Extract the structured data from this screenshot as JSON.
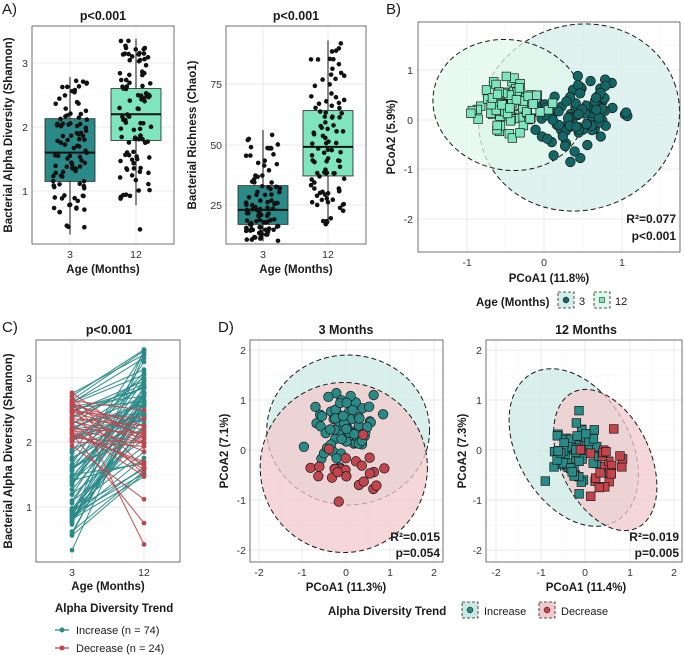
{
  "colors": {
    "teal": "#2a8a88",
    "teal_dark": "#136666",
    "mint": "#7fe5c0",
    "mint_light": "#c7f5e4",
    "red": "#c2454d",
    "red_light": "#f3c9cc",
    "point": "#111111"
  },
  "panel_labels": [
    "A)",
    "B)",
    "C)",
    "D)"
  ],
  "chart_data": [
    {
      "id": "A1",
      "type": "boxplot",
      "title": "p<0.001",
      "xlabel": "Age (Months)",
      "ylabel": "Bacterial Alpha Diversity (Shannon)",
      "categories": [
        "3",
        "12"
      ],
      "ylim": [
        0.2,
        3.5
      ],
      "yticks": [
        1,
        2,
        3
      ],
      "boxes": [
        {
          "group": "3",
          "q1": 1.15,
          "median": 1.6,
          "q3": 2.13,
          "whisker_low": 0.32,
          "whisker_high": 2.78,
          "n": 98,
          "color": "#2a8a88"
        },
        {
          "group": "12",
          "q1": 1.79,
          "median": 2.2,
          "q3": 2.6,
          "whisker_low": 0.78,
          "whisker_high": 3.38,
          "outliers": [
            0.4
          ],
          "n": 98,
          "color": "#7fe5c0"
        }
      ]
    },
    {
      "id": "A2",
      "type": "boxplot",
      "title": "p<0.001",
      "xlabel": "Age (Months)",
      "ylabel": "Bacterial Richness (Chao1)",
      "categories": [
        "3",
        "12"
      ],
      "ylim": [
        8,
        97
      ],
      "yticks": [
        25,
        50,
        75
      ],
      "boxes": [
        {
          "group": "3",
          "q1": 17,
          "median": 23,
          "q3": 33,
          "whisker_low": 10,
          "whisker_high": 56,
          "n": 98,
          "color": "#2a8a88"
        },
        {
          "group": "12",
          "q1": 37,
          "median": 49,
          "q3": 64,
          "whisker_low": 17,
          "whisker_high": 93,
          "n": 98,
          "color": "#7fe5c0"
        }
      ]
    },
    {
      "id": "B",
      "type": "scatter",
      "xlabel": "PCoA1 (11.8%)",
      "ylabel": "PCoA2 (5.9%)",
      "xlim": [
        -1.5,
        1.95
      ],
      "ylim": [
        -2.55,
        2.05
      ],
      "xticks": [
        -1,
        0,
        1
      ],
      "yticks": [
        -2,
        -1,
        0,
        1
      ],
      "r2_label": "R²=0.077",
      "p_label": "p<0.001",
      "legend_title": "Age (Months)",
      "legend_entries": [
        "3",
        "12"
      ],
      "groups": [
        {
          "name": "3",
          "marker": "circle",
          "color": "#136666",
          "ellipse_fill": "#d6eeeb",
          "ellipse": {
            "cx": 0.45,
            "cy": 0.05,
            "rx": 1.3,
            "ry": 1.85,
            "angle_deg": -20
          }
        },
        {
          "name": "12",
          "marker": "square",
          "color": "#7fe5c0",
          "ellipse_fill": "#e0f8ee",
          "ellipse": {
            "cx": -0.45,
            "cy": 0.3,
            "rx": 0.98,
            "ry": 1.3,
            "angle_deg": 12
          }
        }
      ]
    },
    {
      "id": "C",
      "type": "paired-line",
      "title": "p<0.001",
      "xlabel": "Age (Months)",
      "ylabel": "Bacterial Alpha Diversity (Shannon)",
      "categories": [
        "3",
        "12"
      ],
      "ylim": [
        0.2,
        3.5
      ],
      "yticks": [
        1,
        2,
        3
      ],
      "legend_title": "Alpha Diversity Trend",
      "legend_entries": [
        {
          "label": "Increase (n = 74)",
          "color": "#2a8a88"
        },
        {
          "label": "Decrease (n = 24)",
          "color": "#c2454d"
        }
      ],
      "pairs": [
        [
          0.95,
          1.59,
          "i"
        ],
        [
          0.76,
          2.62,
          "i"
        ],
        [
          0.57,
          2.76,
          "i"
        ],
        [
          1.09,
          1.94,
          "i"
        ],
        [
          0.88,
          1.52,
          "i"
        ],
        [
          0.6,
          2.64,
          "i"
        ],
        [
          1.06,
          2.75,
          "i"
        ],
        [
          0.77,
          2.27,
          "i"
        ],
        [
          0.83,
          3.43,
          "i"
        ],
        [
          0.73,
          3.36,
          "i"
        ],
        [
          0.92,
          2.56,
          "i"
        ],
        [
          0.96,
          2.61,
          "i"
        ],
        [
          0.82,
          2.41,
          "i"
        ],
        [
          0.83,
          2.18,
          "i"
        ],
        [
          0.62,
          1.56,
          "i"
        ],
        [
          0.79,
          2.49,
          "i"
        ],
        [
          0.88,
          2.23,
          "i"
        ],
        [
          0.56,
          1.52,
          "i"
        ],
        [
          0.33,
          2.76,
          "i"
        ],
        [
          0.92,
          2.4,
          "i"
        ],
        [
          1.1,
          2.64,
          "i"
        ],
        [
          0.81,
          1.47,
          "i"
        ],
        [
          0.83,
          1.62,
          "i"
        ],
        [
          0.85,
          1.76,
          "i"
        ],
        [
          0.98,
          1.85,
          "i"
        ],
        [
          0.95,
          2.23,
          "i"
        ],
        [
          1.19,
          2.84,
          "i"
        ],
        [
          1.39,
          2.41,
          "i"
        ],
        [
          1.27,
          2.55,
          "i"
        ],
        [
          1.34,
          2.85,
          "i"
        ],
        [
          1.37,
          3.06,
          "i"
        ],
        [
          1.46,
          2.78,
          "i"
        ],
        [
          1.44,
          2.51,
          "i"
        ],
        [
          1.41,
          1.7,
          "i"
        ],
        [
          1.2,
          2.05,
          "i"
        ],
        [
          1.47,
          2.75,
          "i"
        ],
        [
          1.34,
          2.97,
          "i"
        ],
        [
          1.5,
          1.67,
          "i"
        ],
        [
          1.64,
          2.71,
          "i"
        ],
        [
          1.73,
          2.58,
          "i"
        ],
        [
          1.77,
          2.3,
          "i"
        ],
        [
          1.58,
          2.45,
          "i"
        ],
        [
          1.87,
          3.09,
          "i"
        ],
        [
          1.58,
          2.59,
          "i"
        ],
        [
          1.6,
          2.23,
          "i"
        ],
        [
          1.9,
          2.38,
          "i"
        ],
        [
          1.56,
          3.25,
          "i"
        ],
        [
          1.63,
          2.1,
          "i"
        ],
        [
          1.84,
          2.66,
          "i"
        ],
        [
          1.66,
          3.39,
          "i"
        ],
        [
          2.06,
          2.43,
          "i"
        ],
        [
          2.21,
          2.72,
          "i"
        ],
        [
          2.09,
          2.65,
          "i"
        ],
        [
          2.01,
          2.9,
          "i"
        ],
        [
          2.04,
          2.37,
          "i"
        ],
        [
          2.19,
          2.87,
          "i"
        ],
        [
          2.07,
          2.61,
          "i"
        ],
        [
          2.24,
          2.58,
          "i"
        ],
        [
          2.07,
          2.45,
          "i"
        ],
        [
          2.21,
          2.34,
          "i"
        ],
        [
          2.5,
          2.84,
          "i"
        ],
        [
          2.4,
          2.91,
          "i"
        ],
        [
          2.32,
          2.46,
          "i"
        ],
        [
          2.54,
          2.63,
          "i"
        ],
        [
          2.38,
          2.86,
          "i"
        ],
        [
          2.47,
          2.95,
          "i"
        ],
        [
          2.29,
          3.0,
          "i"
        ],
        [
          2.56,
          2.72,
          "i"
        ],
        [
          2.62,
          3.31,
          "i"
        ],
        [
          2.76,
          3.36,
          "i"
        ],
        [
          2.63,
          3.13,
          "i"
        ],
        [
          2.66,
          3.42,
          "i"
        ],
        [
          2.72,
          3.44,
          "i"
        ],
        [
          2.6,
          3.05,
          "i"
        ],
        [
          2.48,
          2.12,
          "d"
        ],
        [
          2.59,
          2.26,
          "d"
        ],
        [
          2.21,
          1.48,
          "d"
        ],
        [
          1.95,
          1.12,
          "d"
        ],
        [
          2.14,
          0.75,
          "d"
        ],
        [
          2.6,
          1.5,
          "d"
        ],
        [
          2.77,
          2.0,
          "d"
        ],
        [
          2.66,
          0.42,
          "d"
        ],
        [
          2.34,
          1.86,
          "d"
        ],
        [
          2.44,
          1.99,
          "d"
        ],
        [
          2.33,
          2.07,
          "d"
        ],
        [
          2.16,
          1.66,
          "d"
        ],
        [
          2.07,
          1.99,
          "d"
        ],
        [
          2.01,
          1.94,
          "d"
        ],
        [
          2.21,
          2.15,
          "d"
        ],
        [
          2.13,
          1.7,
          "d"
        ],
        [
          2.37,
          2.26,
          "d"
        ],
        [
          2.62,
          2.08,
          "d"
        ],
        [
          2.48,
          2.37,
          "d"
        ],
        [
          2.65,
          2.5,
          "d"
        ],
        [
          2.19,
          2.0,
          "d"
        ],
        [
          2.71,
          1.61,
          "d"
        ],
        [
          2.28,
          1.58,
          "d"
        ],
        [
          2.52,
          2.19,
          "d"
        ]
      ]
    },
    {
      "id": "D1",
      "type": "scatter",
      "title": "3 Months",
      "xlabel": "PCoA1 (11.3%)",
      "ylabel": "PCoA2 (7.1%)",
      "xlim": [
        -2.3,
        2.25
      ],
      "ylim": [
        -2.25,
        2.25
      ],
      "xticks": [
        -2,
        -1,
        0,
        1,
        2
      ],
      "yticks": [
        -2,
        -1,
        0,
        1,
        2
      ],
      "r2_label": "R²=0.015",
      "p_label": "p=0.054",
      "groups": [
        {
          "name": "Increase",
          "marker": "circle",
          "color": "#2a8a88",
          "ellipse_fill": "#cbe9e4",
          "ellipse": {
            "cx": 0.05,
            "cy": 0.4,
            "rx": 1.85,
            "ry": 1.5,
            "angle_deg": 0
          }
        },
        {
          "name": "Decrease",
          "marker": "circle",
          "color": "#c2454d",
          "ellipse_fill": "#f3c9cc",
          "ellipse": {
            "cx": -0.05,
            "cy": -0.35,
            "rx": 1.9,
            "ry": 1.7,
            "angle_deg": 0
          }
        }
      ]
    },
    {
      "id": "D2",
      "type": "scatter",
      "title": "12 Months",
      "xlabel": "PCoA1 (11.4%)",
      "ylabel": "PCoA2 (7.3%)",
      "xlim": [
        -2.3,
        2.25
      ],
      "ylim": [
        -2.25,
        2.25
      ],
      "xticks": [
        -2,
        -1,
        0,
        1,
        2
      ],
      "yticks": [
        -2,
        -1,
        0,
        1,
        2
      ],
      "r2_label": "R²=0.019",
      "p_label": "p=0.005",
      "legend_title": "Alpha Diversity Trend",
      "legend_entries": [
        "Increase",
        "Decrease"
      ],
      "groups": [
        {
          "name": "Increase",
          "marker": "square",
          "color": "#2a8a88",
          "ellipse_fill": "#cbe9e4",
          "ellipse": {
            "cx": -0.25,
            "cy": 0.05,
            "rx": 1.25,
            "ry": 1.7,
            "angle_deg": -30
          }
        },
        {
          "name": "Decrease",
          "marker": "square",
          "color": "#c2454d",
          "ellipse_fill": "#f3c9cc",
          "ellipse": {
            "cx": 0.45,
            "cy": -0.2,
            "rx": 1.0,
            "ry": 1.5,
            "angle_deg": -25
          }
        }
      ]
    }
  ]
}
